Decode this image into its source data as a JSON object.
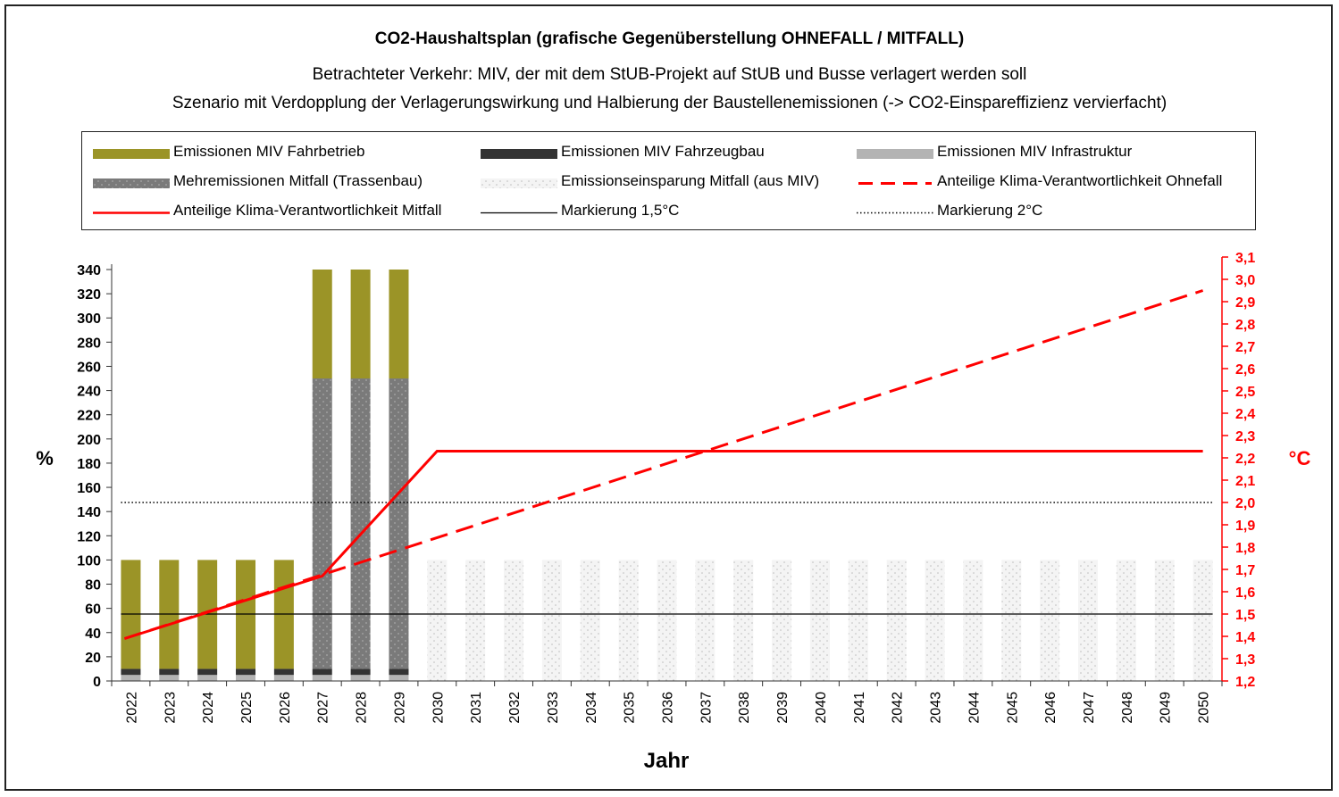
{
  "title": "CO2-Haushaltsplan (grafische Gegenüberstellung OHNEFALL / MITFALL)",
  "subtitle1": "Betrachteter Verkehr: MIV, der mit dem StUB-Projekt auf StUB und Busse verlagert werden soll",
  "subtitle2": "Szenario mit Verdopplung der Verlagerungswirkung und Halbierung der Baustellenemissionen (-> CO2-Einspareffizienz vervierfacht)",
  "legend": {
    "fahrbetrieb": "Emissionen MIV Fahrbetrieb",
    "fahrzeugbau": "Emissionen MIV Fahrzeugbau",
    "infrastruktur": "Emissionen MIV Infrastruktur",
    "trassenbau": "Mehremissionen Mitfall (Trassenbau)",
    "einsparung": "Emissionseinsparung Mitfall (aus MIV)",
    "ohnefall": "Anteilige Klima-Verantwortlichkeit Ohnefall",
    "mitfall": "Anteilige Klima-Verantwortlichkeit Mitfall",
    "mark15": "Markierung 1,5°C",
    "mark2": "Markierung 2°C"
  },
  "colors": {
    "fahrbetrieb": "#9b9427",
    "fahrzeugbau": "#333333",
    "infrastruktur": "#b3b3b3",
    "trassenbau": "#808080",
    "einsparung": "#f2f2f2",
    "red": "#ff0000"
  },
  "chart_data": {
    "type": "bar",
    "xlabel": "Jahr",
    "ylabel": "%",
    "y2label": "°C",
    "ylim": [
      0,
      340
    ],
    "y2lim": [
      1.2,
      3.1
    ],
    "yticks": [
      "0",
      "20",
      "40",
      "60",
      "80",
      "100",
      "120",
      "140",
      "160",
      "180",
      "200",
      "220",
      "240",
      "260",
      "280",
      "300",
      "320",
      "340"
    ],
    "y2ticks": [
      "1,2",
      "1,3",
      "1,4",
      "1,5",
      "1,6",
      "1,7",
      "1,8",
      "1,9",
      "2,0",
      "2,1",
      "2,2",
      "2,3",
      "2,4",
      "2,5",
      "2,6",
      "2,7",
      "2,8",
      "2,9",
      "3,0",
      "3,1"
    ],
    "categories": [
      "2022",
      "2023",
      "2024",
      "2025",
      "2026",
      "2027",
      "2028",
      "2029",
      "2030",
      "2031",
      "2032",
      "2033",
      "2034",
      "2035",
      "2036",
      "2037",
      "2038",
      "2039",
      "2040",
      "2041",
      "2042",
      "2043",
      "2044",
      "2045",
      "2046",
      "2047",
      "2048",
      "2049",
      "2050"
    ],
    "series": [
      {
        "name": "Emissionen MIV Infrastruktur",
        "values": [
          5,
          5,
          5,
          5,
          5,
          5,
          5,
          5,
          0,
          0,
          0,
          0,
          0,
          0,
          0,
          0,
          0,
          0,
          0,
          0,
          0,
          0,
          0,
          0,
          0,
          0,
          0,
          0,
          0
        ]
      },
      {
        "name": "Emissionen MIV Fahrzeugbau",
        "values": [
          5,
          5,
          5,
          5,
          5,
          5,
          5,
          5,
          0,
          0,
          0,
          0,
          0,
          0,
          0,
          0,
          0,
          0,
          0,
          0,
          0,
          0,
          0,
          0,
          0,
          0,
          0,
          0,
          0
        ]
      },
      {
        "name": "Mehremissionen Mitfall (Trassenbau)",
        "values": [
          0,
          0,
          0,
          0,
          0,
          240,
          240,
          240,
          0,
          0,
          0,
          0,
          0,
          0,
          0,
          0,
          0,
          0,
          0,
          0,
          0,
          0,
          0,
          0,
          0,
          0,
          0,
          0,
          0
        ]
      },
      {
        "name": "Emissionen MIV Fahrbetrieb",
        "values": [
          90,
          90,
          90,
          90,
          90,
          90,
          90,
          90,
          0,
          0,
          0,
          0,
          0,
          0,
          0,
          0,
          0,
          0,
          0,
          0,
          0,
          0,
          0,
          0,
          0,
          0,
          0,
          0,
          0
        ]
      },
      {
        "name": "Emissionseinsparung Mitfall (aus MIV)",
        "values": [
          0,
          0,
          0,
          0,
          0,
          0,
          0,
          0,
          100,
          100,
          100,
          100,
          100,
          100,
          100,
          100,
          100,
          100,
          100,
          100,
          100,
          100,
          100,
          100,
          100,
          100,
          100,
          100,
          100
        ]
      }
    ],
    "line_series": [
      {
        "name": "Anteilige Klima-Verantwortlichkeit Ohnefall",
        "axis": "right",
        "style": "dashed",
        "x": [
          "2022",
          "2050"
        ],
        "values": [
          1.39,
          2.95
        ]
      },
      {
        "name": "Anteilige Klima-Verantwortlichkeit Mitfall",
        "axis": "right",
        "style": "solid",
        "x": [
          "2022",
          "2027",
          "2030",
          "2050"
        ],
        "values": [
          1.39,
          1.67,
          2.23,
          2.23
        ]
      }
    ],
    "reference_lines": [
      {
        "name": "Markierung 1,5°C",
        "axis": "right",
        "value": 1.5,
        "style": "solid"
      },
      {
        "name": "Markierung 2°C",
        "axis": "right",
        "value": 2.0,
        "style": "dotted"
      }
    ]
  }
}
